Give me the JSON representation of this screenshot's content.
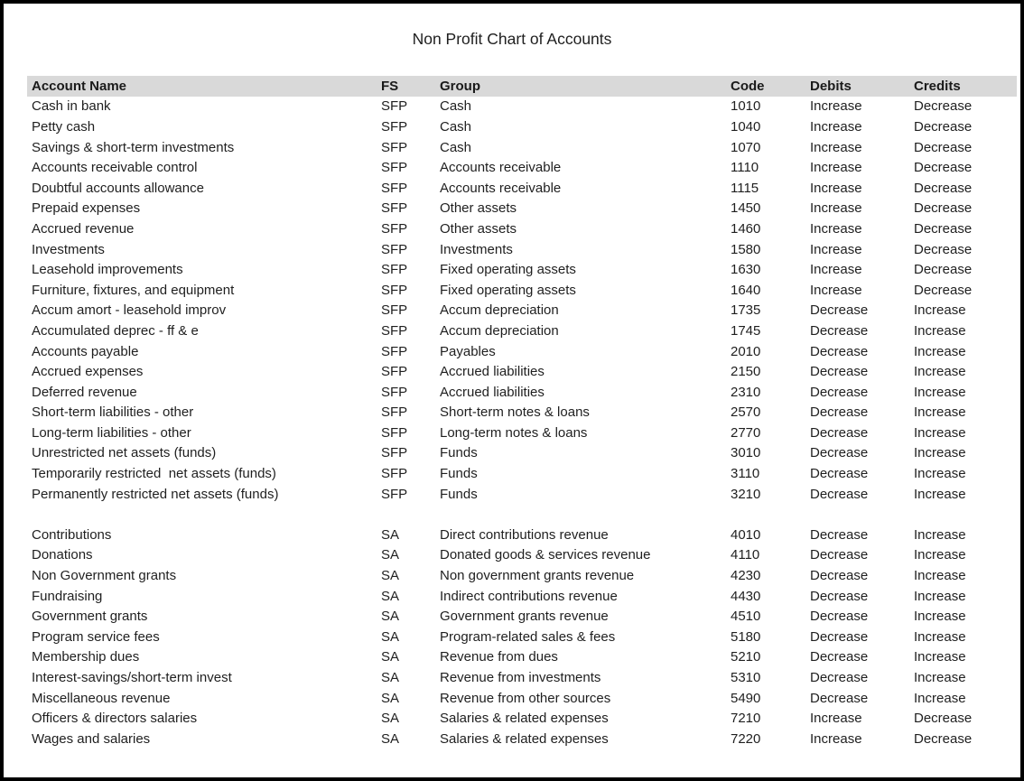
{
  "page": {
    "title": "Non Profit Chart of Accounts"
  },
  "colors": {
    "header_background": "#d9d9d9",
    "text": "#1f1f1f",
    "page_border": "#000000"
  },
  "table": {
    "columns": [
      "Account Name",
      "FS",
      "Group",
      "Code",
      "Debits",
      "Credits"
    ],
    "sections": [
      {
        "name": "statement-of-financial-position",
        "rows": [
          {
            "account": "Cash in bank",
            "fs": "SFP",
            "group": "Cash",
            "code": "1010",
            "debits": "Increase",
            "credits": "Decrease"
          },
          {
            "account": "Petty cash",
            "fs": "SFP",
            "group": "Cash",
            "code": "1040",
            "debits": "Increase",
            "credits": "Decrease"
          },
          {
            "account": "Savings & short-term investments",
            "fs": "SFP",
            "group": "Cash",
            "code": "1070",
            "debits": "Increase",
            "credits": "Decrease"
          },
          {
            "account": "Accounts receivable control",
            "fs": "SFP",
            "group": "Accounts receivable",
            "code": "1110",
            "debits": "Increase",
            "credits": "Decrease"
          },
          {
            "account": "Doubtful accounts allowance",
            "fs": "SFP",
            "group": "Accounts receivable",
            "code": "1115",
            "debits": "Increase",
            "credits": "Decrease"
          },
          {
            "account": "Prepaid expenses",
            "fs": "SFP",
            "group": "Other assets",
            "code": "1450",
            "debits": "Increase",
            "credits": "Decrease"
          },
          {
            "account": "Accrued revenue",
            "fs": "SFP",
            "group": "Other assets",
            "code": "1460",
            "debits": "Increase",
            "credits": "Decrease"
          },
          {
            "account": "Investments",
            "fs": "SFP",
            "group": "Investments",
            "code": "1580",
            "debits": "Increase",
            "credits": "Decrease"
          },
          {
            "account": "Leasehold improvements",
            "fs": "SFP",
            "group": "Fixed operating assets",
            "code": "1630",
            "debits": "Increase",
            "credits": "Decrease"
          },
          {
            "account": "Furniture, fixtures, and equipment",
            "fs": "SFP",
            "group": "Fixed operating assets",
            "code": "1640",
            "debits": "Increase",
            "credits": "Decrease"
          },
          {
            "account": "Accum amort - leasehold improv",
            "fs": "SFP",
            "group": "Accum depreciation",
            "code": "1735",
            "debits": "Decrease",
            "credits": "Increase"
          },
          {
            "account": "Accumulated deprec - ff & e",
            "fs": "SFP",
            "group": "Accum depreciation",
            "code": "1745",
            "debits": "Decrease",
            "credits": "Increase"
          },
          {
            "account": "Accounts payable",
            "fs": "SFP",
            "group": "Payables",
            "code": "2010",
            "debits": "Decrease",
            "credits": "Increase"
          },
          {
            "account": "Accrued expenses",
            "fs": "SFP",
            "group": "Accrued liabilities",
            "code": "2150",
            "debits": "Decrease",
            "credits": "Increase"
          },
          {
            "account": "Deferred revenue",
            "fs": "SFP",
            "group": "Accrued liabilities",
            "code": "2310",
            "debits": "Decrease",
            "credits": "Increase"
          },
          {
            "account": "Short-term liabilities - other",
            "fs": "SFP",
            "group": "Short-term notes & loans",
            "code": "2570",
            "debits": "Decrease",
            "credits": "Increase"
          },
          {
            "account": "Long-term liabilities - other",
            "fs": "SFP",
            "group": "Long-term notes & loans",
            "code": "2770",
            "debits": "Decrease",
            "credits": "Increase"
          },
          {
            "account": "Unrestricted net assets (funds)",
            "fs": "SFP",
            "group": "Funds",
            "code": "3010",
            "debits": "Decrease",
            "credits": "Increase"
          },
          {
            "account": "Temporarily restricted  net assets (funds)",
            "fs": "SFP",
            "group": "Funds",
            "code": "3110",
            "debits": "Decrease",
            "credits": "Increase"
          },
          {
            "account": "Permanently restricted net assets (funds)",
            "fs": "SFP",
            "group": "Funds",
            "code": "3210",
            "debits": "Decrease",
            "credits": "Increase"
          }
        ]
      },
      {
        "name": "statement-of-activities",
        "rows": [
          {
            "account": "Contributions",
            "fs": "SA",
            "group": "Direct contributions revenue",
            "code": "4010",
            "debits": "Decrease",
            "credits": "Increase"
          },
          {
            "account": "Donations",
            "fs": "SA",
            "group": "Donated goods & services revenue",
            "code": "4110",
            "debits": "Decrease",
            "credits": "Increase"
          },
          {
            "account": "Non Government grants",
            "fs": "SA",
            "group": "Non government grants revenue",
            "code": "4230",
            "debits": "Decrease",
            "credits": "Increase"
          },
          {
            "account": "Fundraising",
            "fs": "SA",
            "group": "Indirect contributions revenue",
            "code": "4430",
            "debits": "Decrease",
            "credits": "Increase"
          },
          {
            "account": "Government grants",
            "fs": "SA",
            "group": "Government grants revenue",
            "code": "4510",
            "debits": "Decrease",
            "credits": "Increase"
          },
          {
            "account": "Program service fees",
            "fs": "SA",
            "group": "Program-related sales & fees",
            "code": "5180",
            "debits": "Decrease",
            "credits": "Increase"
          },
          {
            "account": "Membership dues",
            "fs": "SA",
            "group": "Revenue from dues",
            "code": "5210",
            "debits": "Decrease",
            "credits": "Increase"
          },
          {
            "account": "Interest-savings/short-term invest",
            "fs": "SA",
            "group": "Revenue from investments",
            "code": "5310",
            "debits": "Decrease",
            "credits": "Increase"
          },
          {
            "account": "Miscellaneous revenue",
            "fs": "SA",
            "group": "Revenue from other sources",
            "code": "5490",
            "debits": "Decrease",
            "credits": "Increase"
          },
          {
            "account": "Officers & directors salaries",
            "fs": "SA",
            "group": "Salaries & related expenses",
            "code": "7210",
            "debits": "Increase",
            "credits": "Decrease"
          },
          {
            "account": "Wages and salaries",
            "fs": "SA",
            "group": "Salaries & related expenses",
            "code": "7220",
            "debits": "Increase",
            "credits": "Decrease"
          }
        ]
      }
    ]
  }
}
